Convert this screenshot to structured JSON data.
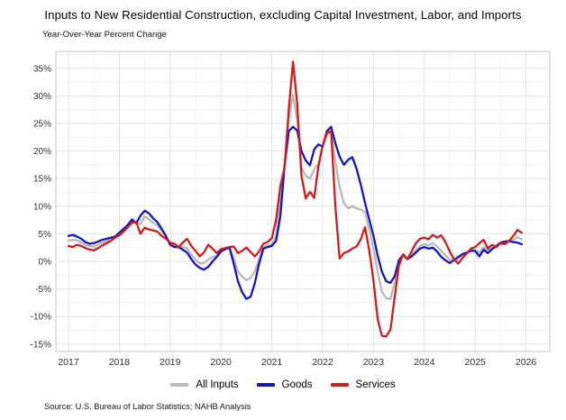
{
  "page": {
    "title": "Inputs to New Residential Construction, excluding Capital Investment, Labor, and Imports",
    "subtitle": "Year-Over-Year Percent Change",
    "source": "Source: U.S. Bureau of Labor Statistics; NAHB Analysis"
  },
  "chart_data": {
    "type": "line",
    "title": "Inputs to New Residential Construction, excluding Capital Investment, Labor, and Imports",
    "subtitle": "Year-Over-Year Percent Change",
    "x_start": "2017-01",
    "x_frequency": "monthly",
    "x_tick_labels": [
      "2017",
      "2018",
      "2019",
      "2020",
      "2021",
      "2022",
      "2023",
      "2024",
      "2025",
      "2026"
    ],
    "y_ticks": [
      -15,
      -10,
      -5,
      0,
      5,
      10,
      15,
      20,
      25,
      30,
      35
    ],
    "y_tick_labels": [
      "-15%",
      "-10%",
      "-5%",
      "0%",
      "5%",
      "10%",
      "15%",
      "20%",
      "25%",
      "30%",
      "35%"
    ],
    "y_unit": "%",
    "ylim": [
      -16.3,
      38.1
    ],
    "grid": {
      "major_y_step": 5,
      "minor_y_step": 2.5,
      "major_x": "year",
      "minor_x": "mid-year"
    },
    "legend_position": "bottom",
    "colors": {
      "all_inputs": "#b9b9b9",
      "goods": "#1616c0",
      "services": "#d01c1c"
    },
    "series": [
      {
        "name": "All Inputs",
        "color": "#b9b9b9",
        "values": [
          3.8,
          3.9,
          3.8,
          3.5,
          3.0,
          2.8,
          2.7,
          3.0,
          3.4,
          3.7,
          4.0,
          4.4,
          5.0,
          5.6,
          6.3,
          7.3,
          7.0,
          6.8,
          8.2,
          7.6,
          7.0,
          6.5,
          5.5,
          4.4,
          3.1,
          2.8,
          2.6,
          2.6,
          2.4,
          1.2,
          0.3,
          -0.4,
          -0.3,
          0.4,
          0.8,
          1.0,
          1.9,
          2.3,
          2.5,
          0.6,
          -1.8,
          -2.8,
          -3.4,
          -3.0,
          -1.8,
          0.4,
          2.6,
          2.9,
          3.1,
          4.6,
          10.5,
          17.2,
          25.8,
          30.2,
          25.5,
          17.0,
          15.5,
          15.0,
          16.6,
          17.7,
          20.9,
          23.0,
          23.4,
          18.0,
          13.5,
          10.6,
          9.6,
          10.0,
          9.6,
          9.4,
          8.9,
          5.8,
          2.3,
          -2.0,
          -5.5,
          -6.7,
          -6.8,
          -3.9,
          0.0,
          1.1,
          0.4,
          1.2,
          2.0,
          2.8,
          3.1,
          2.9,
          3.3,
          2.7,
          1.9,
          1.1,
          0.3,
          0.2,
          0.6,
          1.1,
          1.5,
          2.0,
          2.1,
          1.6,
          2.6,
          1.9,
          2.5,
          2.7,
          3.3,
          3.4,
          3.6,
          3.9,
          4.4,
          4.0
        ]
      },
      {
        "name": "Goods",
        "color": "#1616c0",
        "values": [
          4.6,
          4.8,
          4.5,
          4.1,
          3.5,
          3.2,
          3.3,
          3.6,
          3.9,
          4.1,
          4.3,
          4.5,
          5.2,
          5.9,
          6.6,
          7.6,
          6.9,
          8.3,
          9.2,
          8.7,
          7.8,
          7.1,
          5.9,
          4.6,
          3.0,
          2.6,
          2.6,
          2.1,
          1.6,
          0.4,
          -0.6,
          -1.2,
          -1.5,
          -1.0,
          0.0,
          0.8,
          1.8,
          2.2,
          2.5,
          -0.4,
          -3.6,
          -5.6,
          -6.8,
          -6.4,
          -3.9,
          -0.4,
          2.3,
          2.6,
          2.8,
          3.7,
          8.1,
          17.2,
          23.6,
          24.4,
          23.7,
          20.0,
          18.3,
          17.4,
          20.3,
          21.2,
          20.8,
          23.6,
          24.4,
          21.4,
          19.0,
          17.5,
          18.4,
          18.9,
          16.8,
          13.9,
          10.6,
          7.6,
          4.6,
          1.0,
          -1.9,
          -3.6,
          -3.9,
          -2.7,
          0.2,
          1.2,
          0.4,
          0.9,
          1.6,
          2.3,
          2.6,
          2.3,
          2.5,
          1.8,
          0.8,
          0.2,
          -0.3,
          0.2,
          0.8,
          1.3,
          1.6,
          1.9,
          1.9,
          0.9,
          2.1,
          1.5,
          2.2,
          2.8,
          3.4,
          3.6,
          3.7,
          3.5,
          3.4,
          3.1
        ]
      },
      {
        "name": "Services",
        "color": "#d01c1c",
        "values": [
          2.8,
          2.6,
          3.0,
          2.8,
          2.4,
          2.1,
          2.0,
          2.4,
          2.9,
          3.3,
          3.7,
          4.3,
          4.7,
          5.4,
          6.2,
          7.0,
          7.1,
          5.0,
          6.1,
          5.8,
          5.6,
          5.4,
          4.6,
          4.1,
          3.4,
          3.2,
          2.6,
          3.4,
          4.1,
          2.8,
          1.9,
          0.9,
          1.6,
          3.0,
          2.3,
          1.5,
          2.2,
          2.4,
          2.6,
          2.7,
          1.5,
          1.9,
          2.5,
          1.7,
          0.9,
          1.8,
          3.2,
          3.5,
          4.2,
          7.5,
          13.6,
          17.0,
          27.5,
          36.2,
          28.5,
          15.5,
          11.4,
          12.6,
          11.5,
          17.2,
          21.0,
          23.3,
          23.6,
          10.0,
          0.5,
          1.5,
          1.8,
          2.3,
          2.7,
          4.0,
          6.2,
          2.0,
          -3.5,
          -10.5,
          -13.5,
          -13.6,
          -12.4,
          -6.5,
          -0.8,
          1.3,
          0.4,
          1.8,
          3.3,
          4.1,
          4.3,
          4.0,
          4.8,
          4.3,
          4.7,
          3.5,
          1.8,
          0.4,
          -0.4,
          0.6,
          1.4,
          2.3,
          2.6,
          3.3,
          3.9,
          2.3,
          3.0,
          2.6,
          3.3,
          3.1,
          3.7,
          4.6,
          5.7,
          5.2
        ]
      }
    ]
  }
}
